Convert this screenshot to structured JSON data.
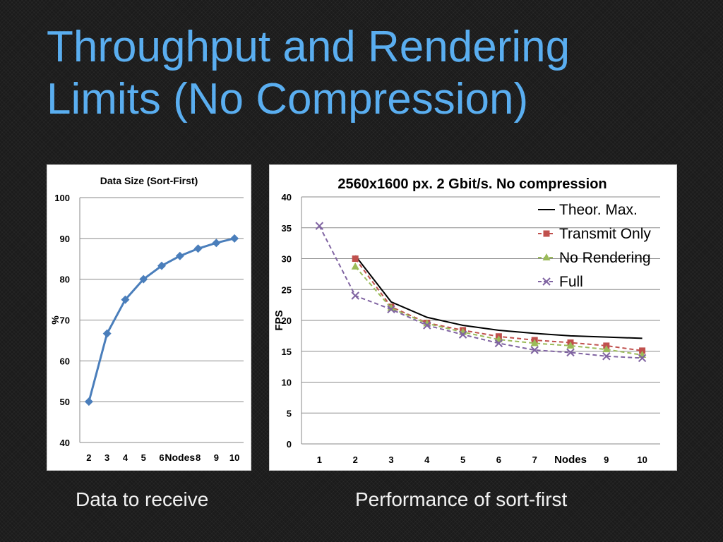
{
  "slide": {
    "title_line1": "Throughput and Rendering",
    "title_line2": "Limits (No Compression)",
    "captions": [
      "Data to receive",
      "Performance of sort-first"
    ]
  },
  "chart_data": [
    {
      "type": "line",
      "title": "Data Size (Sort-First)",
      "xlabel": "Nodes",
      "ylabel": "%",
      "x": [
        2,
        3,
        4,
        5,
        6,
        7,
        8,
        9,
        10
      ],
      "x_tick_labels": [
        "2",
        "3",
        "4",
        "5",
        "6",
        "7",
        "8",
        "9",
        "10"
      ],
      "x_label_replaces_tick": "7",
      "ylim": [
        40,
        100
      ],
      "y_ticks": [
        40,
        50,
        60,
        70,
        80,
        90,
        100
      ],
      "grid": "horizontal",
      "series": [
        {
          "values": [
            50,
            66.7,
            75,
            80,
            83.3,
            85.7,
            87.5,
            88.9,
            90
          ],
          "color": "#4a7ebb",
          "marker": "diamond"
        }
      ]
    },
    {
      "type": "line",
      "title": "2560x1600 px. 2 Gbit/s. No compression",
      "xlabel": "Nodes",
      "ylabel": "FPS",
      "x": [
        1,
        2,
        3,
        4,
        5,
        6,
        7,
        8,
        9,
        10
      ],
      "x_tick_labels": [
        "1",
        "2",
        "3",
        "4",
        "5",
        "6",
        "7",
        "8",
        "9",
        "10"
      ],
      "x_label_replaces_tick": "8",
      "ylim": [
        0,
        40
      ],
      "y_ticks": [
        0,
        5,
        10,
        15,
        20,
        25,
        30,
        35,
        40
      ],
      "grid": "horizontal",
      "legend_position": "top-right",
      "series": [
        {
          "name": "Theor. Max.",
          "x": [
            2,
            3,
            4,
            5,
            6,
            7,
            8,
            9,
            10
          ],
          "values": [
            30.5,
            23,
            20.5,
            19.2,
            18.4,
            17.9,
            17.5,
            17.3,
            17.1
          ],
          "color": "#000000",
          "dash": "solid",
          "marker": "none"
        },
        {
          "name": "Transmit Only",
          "x": [
            2,
            3,
            4,
            5,
            6,
            7,
            8,
            9,
            10
          ],
          "values": [
            30,
            22.2,
            19.6,
            18.4,
            17.4,
            16.8,
            16.4,
            15.9,
            15.1
          ],
          "color": "#c0504d",
          "dash": "dashed",
          "marker": "square"
        },
        {
          "name": "No Rendering",
          "x": [
            2,
            3,
            4,
            5,
            6,
            7,
            8,
            9,
            10
          ],
          "values": [
            28.7,
            22,
            19.5,
            18.1,
            16.9,
            16.3,
            15.9,
            15.3,
            14.4
          ],
          "color": "#9bbb59",
          "dash": "dashed",
          "marker": "triangle"
        },
        {
          "name": "Full",
          "x": [
            1,
            2,
            3,
            4,
            5,
            6,
            7,
            8,
            9,
            10
          ],
          "values": [
            35.3,
            24,
            21.8,
            19.2,
            17.7,
            16.3,
            15.2,
            14.8,
            14.2,
            13.9
          ],
          "color": "#8064a2",
          "dash": "dashed",
          "marker": "x"
        }
      ]
    }
  ]
}
